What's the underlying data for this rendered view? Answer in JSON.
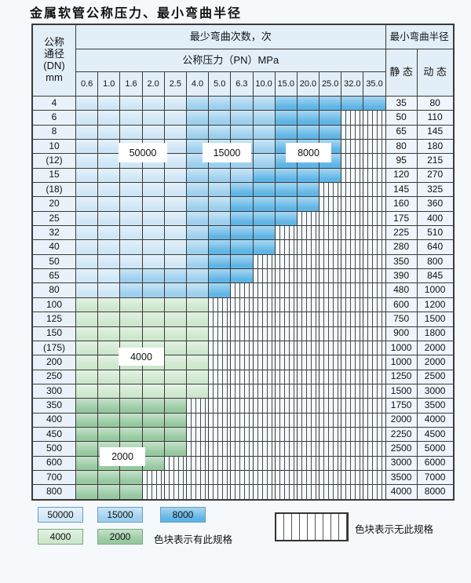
{
  "title": "金属软管公称压力、最小弯曲半径",
  "colors": {
    "blue_50000": "#cfe6f6",
    "blue_15000": "#9dd0ee",
    "blue_8000": "#5fb5e6",
    "green_4000": "#cde7cd",
    "green_2000": "#96c9a0",
    "hatch_bg": "#f3f9fd",
    "header_bg": "#e2eff9",
    "dn_col_bg": "#e9f2fa",
    "value_col_bg": "#eef5fc",
    "grid_line": "#3a3a3a"
  },
  "table": {
    "dn_header_lines": [
      "公称",
      "通径",
      "(DN)",
      "mm"
    ],
    "bend_times_header": "最少弯曲次数，次",
    "pressure_header": "公称压力（PN）MPa",
    "pressure_ticks": [
      "0.6",
      "1.0",
      "1.6",
      "2.0",
      "2.5",
      "4.0",
      "5.0",
      "6.3",
      "10.0",
      "15.0",
      "20.0",
      "25.0",
      "32.0",
      "35.0"
    ],
    "radius_header": "最小弯曲半径",
    "static_label": "静 态",
    "dynamic_label": "动 态",
    "zone_legend_meaning": {
      "L": "50000",
      "M": "15000",
      "D": "8000",
      "G": "4000",
      "E": "2000",
      "H": "无此规格"
    },
    "rows": [
      {
        "dn": "4",
        "zones": "LLLLLMMMMDDDDD",
        "static": "35",
        "dynamic": "80"
      },
      {
        "dn": "6",
        "zones": "LLLLLMMMMDDDHH",
        "static": "50",
        "dynamic": "110"
      },
      {
        "dn": "8",
        "zones": "LLLLLMMMMDDDHH",
        "static": "65",
        "dynamic": "145"
      },
      {
        "dn": "10",
        "zones": "LLLLLMMMMDDDHH",
        "static": "80",
        "dynamic": "180"
      },
      {
        "dn": "(12)",
        "zones": "LLLLLMMMMDDDHH",
        "static": "95",
        "dynamic": "215"
      },
      {
        "dn": "15",
        "zones": "LLLLLMMMDDDDHH",
        "static": "120",
        "dynamic": "270"
      },
      {
        "dn": "(18)",
        "zones": "LLLLLMMDDDDHHH",
        "static": "145",
        "dynamic": "325"
      },
      {
        "dn": "20",
        "zones": "LLLLLMMDDDDHHH",
        "static": "160",
        "dynamic": "360"
      },
      {
        "dn": "25",
        "zones": "LLLLLMMDDDHHHH",
        "static": "175",
        "dynamic": "400"
      },
      {
        "dn": "32",
        "zones": "LLLLLMDDDHHHHH",
        "static": "225",
        "dynamic": "510"
      },
      {
        "dn": "40",
        "zones": "LLLLLMDDDHHHHH",
        "static": "280",
        "dynamic": "640"
      },
      {
        "dn": "50",
        "zones": "LLLLLMDDHHHHHH",
        "static": "350",
        "dynamic": "800"
      },
      {
        "dn": "65",
        "zones": "LLMMMMDDHHHHHH",
        "static": "390",
        "dynamic": "845"
      },
      {
        "dn": "80",
        "zones": "LLMMMMDHHHHHHH",
        "static": "480",
        "dynamic": "1000"
      },
      {
        "dn": "100",
        "zones": "GGGGGGHHHHHHHH",
        "static": "600",
        "dynamic": "1200"
      },
      {
        "dn": "125",
        "zones": "GGGGGGHHHHHHHH",
        "static": "750",
        "dynamic": "1500"
      },
      {
        "dn": "150",
        "zones": "GGGGGGHHHHHHHH",
        "static": "900",
        "dynamic": "1800"
      },
      {
        "dn": "(175)",
        "zones": "GGGGGGHHHHHHHH",
        "static": "1000",
        "dynamic": "2000"
      },
      {
        "dn": "200",
        "zones": "GGGGGGHHHHHHHH",
        "static": "1000",
        "dynamic": "2000"
      },
      {
        "dn": "250",
        "zones": "GGGGGGHHHHHHHH",
        "static": "1250",
        "dynamic": "2500"
      },
      {
        "dn": "300",
        "zones": "GGGGGGHHHHHHHH",
        "static": "1500",
        "dynamic": "3000"
      },
      {
        "dn": "350",
        "zones": "EEEEEHHHHHHHHH",
        "static": "1750",
        "dynamic": "3500"
      },
      {
        "dn": "400",
        "zones": "EEEEEHHHHHHHHH",
        "static": "2000",
        "dynamic": "4000"
      },
      {
        "dn": "450",
        "zones": "EEEEEHHHHHHHHH",
        "static": "2250",
        "dynamic": "4500"
      },
      {
        "dn": "500",
        "zones": "EEEEEHHHHHHHHH",
        "static": "2500",
        "dynamic": "5000"
      },
      {
        "dn": "600",
        "zones": "EEEEHHHHHHHHHH",
        "static": "3000",
        "dynamic": "6000"
      },
      {
        "dn": "700",
        "zones": "EEEHHHHHHHHHHH",
        "static": "3500",
        "dynamic": "7000"
      },
      {
        "dn": "800",
        "zones": "EEEHHHHHHHHHHH",
        "static": "4000",
        "dynamic": "8000"
      }
    ],
    "overlay_labels": [
      {
        "text": "50000"
      },
      {
        "text": "15000"
      },
      {
        "text": "8000"
      },
      {
        "text": "4000"
      },
      {
        "text": "2000"
      }
    ]
  },
  "legend": {
    "items": [
      {
        "label": "50000"
      },
      {
        "label": "15000"
      },
      {
        "label": "8000"
      },
      {
        "label": "4000"
      },
      {
        "label": "2000"
      }
    ],
    "has_spec_note": "色块表示有此规格",
    "no_spec_note": "色块表示无此规格"
  }
}
